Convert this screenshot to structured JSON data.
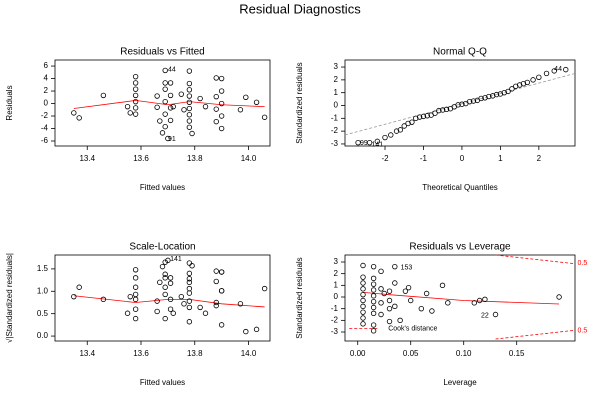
{
  "title": "Residual Diagnostics",
  "chart_data": [
    {
      "type": "scatter",
      "title": "Residuals vs Fitted",
      "xlabel": "Fitted values",
      "ylabel": "Residuals",
      "xlim": [
        13.28,
        14.08
      ],
      "ylim": [
        -6.8,
        6.97
      ],
      "xticks": [
        13.4,
        13.6,
        13.8,
        {
          "value": 14.0,
          "label": "14.0"
        }
      ],
      "yticks": [
        -6,
        -4,
        -2,
        0,
        2,
        4,
        6
      ],
      "color": "#000000",
      "x": [
        13.35,
        13.37,
        13.46,
        13.55,
        13.56,
        13.58,
        13.58,
        13.58,
        13.58,
        13.58,
        13.58,
        13.58,
        13.66,
        13.66,
        13.67,
        13.68,
        13.69,
        13.69,
        13.69,
        13.69,
        13.69,
        13.69,
        13.7,
        13.71,
        13.71,
        13.71,
        13.71,
        13.72,
        13.75,
        13.76,
        13.78,
        13.78,
        13.78,
        13.78,
        13.78,
        13.78,
        13.78,
        13.78,
        13.78,
        13.79,
        13.82,
        13.84,
        13.88,
        13.88,
        13.88,
        13.88,
        13.9,
        13.9,
        13.9,
        13.9,
        13.9,
        13.97,
        13.99,
        14.03,
        14.06
      ],
      "values": [
        -1.5,
        -2.3,
        1.3,
        -0.5,
        -1.5,
        4.3,
        2.3,
        1.3,
        0.3,
        -0.7,
        -1.7,
        3.3,
        1.2,
        -0.6,
        -2.8,
        -4.7,
        5.3,
        3.3,
        2.3,
        0.3,
        -1.7,
        -3.7,
        -5.6,
        3.3,
        1.3,
        -0.7,
        -2.7,
        -0.5,
        1.5,
        -1.0,
        5.2,
        3.2,
        2.2,
        1.2,
        0.2,
        -0.8,
        -1.8,
        -2.8,
        -3.8,
        -4.8,
        0.8,
        -0.5,
        4.1,
        1.1,
        -0.9,
        -2.9,
        4.0,
        2.0,
        0.0,
        -2.0,
        -4.0,
        -1.0,
        1.0,
        0.2,
        -2.2
      ],
      "lines": [
        {
          "color": "#ff0000",
          "dash": false,
          "x": [
            13.35,
            13.58,
            13.7,
            13.78,
            13.9,
            14.06
          ],
          "values": [
            -0.8,
            0.5,
            -0.2,
            0.3,
            -0.2,
            -0.5
          ]
        }
      ],
      "annotations": [
        {
          "text": "44",
          "x": 13.715,
          "y": 5.4
        },
        {
          "text": "91",
          "x": 13.715,
          "y": -5.7
        }
      ]
    },
    {
      "type": "scatter",
      "title": "Normal Q-Q",
      "xlabel": "Theoretical Quantiles",
      "ylabel": "Standardized residuals",
      "xlim": [
        -3.04,
        2.94
      ],
      "ylim": [
        -3.16,
        3.55
      ],
      "xticks": [
        -2,
        -1,
        0,
        1,
        2
      ],
      "yticks": [
        -3,
        -2,
        -1,
        0,
        1,
        2,
        3
      ],
      "color": "#000000",
      "x": [
        -2.7,
        -2.4,
        -2.2,
        -2.0,
        -1.85,
        -1.7,
        -1.6,
        -1.5,
        -1.4,
        -1.3,
        -1.2,
        -1.1,
        -1.0,
        -0.9,
        -0.8,
        -0.7,
        -0.6,
        -0.5,
        -0.4,
        -0.3,
        -0.2,
        -0.1,
        0.0,
        0.1,
        0.2,
        0.3,
        0.4,
        0.5,
        0.6,
        0.7,
        0.8,
        0.9,
        1.0,
        1.1,
        1.2,
        1.3,
        1.4,
        1.5,
        1.6,
        1.7,
        1.85,
        2.0,
        2.2,
        2.4,
        2.7
      ],
      "values": [
        -2.9,
        -2.9,
        -2.8,
        -2.5,
        -2.3,
        -2.0,
        -1.9,
        -1.6,
        -1.4,
        -1.3,
        -1.0,
        -0.9,
        -0.85,
        -0.8,
        -0.75,
        -0.6,
        -0.4,
        -0.35,
        -0.3,
        -0.25,
        -0.1,
        0.05,
        0.1,
        0.15,
        0.3,
        0.35,
        0.4,
        0.55,
        0.6,
        0.7,
        0.75,
        0.85,
        0.9,
        1.0,
        1.1,
        1.3,
        1.5,
        1.6,
        1.7,
        1.8,
        2.0,
        2.2,
        2.5,
        2.7,
        2.8
      ],
      "lines": [
        {
          "color": "#999999",
          "dash": true,
          "x": [
            -3.04,
            2.94
          ],
          "values": [
            -2.3,
            2.5
          ]
        }
      ],
      "annotations": [
        {
          "text": "99",
          "x": -2.55,
          "y": -2.95
        },
        {
          "text": "141",
          "x": -2.2,
          "y": -3.05
        },
        {
          "text": "44",
          "x": 2.5,
          "y": 2.85
        }
      ]
    },
    {
      "type": "scatter",
      "title": "Scale-Location",
      "xlabel": "Fitted values",
      "ylabel": "√|Standardized residuals|",
      "xlim": [
        13.28,
        14.08
      ],
      "ylim": [
        -0.11,
        1.81
      ],
      "xticks": [
        13.4,
        13.6,
        13.8,
        {
          "value": 14.0,
          "label": "14.0"
        }
      ],
      "yticks": [
        {
          "value": 0,
          "label": "0.0"
        },
        0.5,
        {
          "value": 1,
          "label": "1.0"
        },
        1.5
      ],
      "color": "#000000",
      "x": [
        13.35,
        13.37,
        13.46,
        13.55,
        13.56,
        13.58,
        13.58,
        13.58,
        13.58,
        13.58,
        13.58,
        13.58,
        13.66,
        13.66,
        13.67,
        13.68,
        13.69,
        13.69,
        13.69,
        13.69,
        13.69,
        13.69,
        13.7,
        13.71,
        13.71,
        13.71,
        13.71,
        13.72,
        13.75,
        13.76,
        13.78,
        13.78,
        13.78,
        13.78,
        13.78,
        13.78,
        13.78,
        13.78,
        13.78,
        13.79,
        13.82,
        13.84,
        13.88,
        13.88,
        13.88,
        13.88,
        13.9,
        13.9,
        13.9,
        13.9,
        13.9,
        13.97,
        13.99,
        14.03,
        14.06
      ],
      "values": [
        0.88,
        1.09,
        0.82,
        0.51,
        0.88,
        1.48,
        1.09,
        0.82,
        0.39,
        0.6,
        0.93,
        1.3,
        0.78,
        0.55,
        1.2,
        1.55,
        1.65,
        1.3,
        1.09,
        0.39,
        0.93,
        1.38,
        1.69,
        1.3,
        0.82,
        0.6,
        1.18,
        0.51,
        0.88,
        0.72,
        1.63,
        1.28,
        1.06,
        0.78,
        0.32,
        0.64,
        0.96,
        1.2,
        1.4,
        1.57,
        0.64,
        0.51,
        1.45,
        0.75,
        0.68,
        1.22,
        1.43,
        1.01,
        0.25,
        1.01,
        1.43,
        0.72,
        0.1,
        0.15,
        1.06
      ],
      "lines": [
        {
          "color": "#ff0000",
          "dash": false,
          "x": [
            13.35,
            13.58,
            13.7,
            13.78,
            13.9,
            14.06
          ],
          "values": [
            0.9,
            0.75,
            0.82,
            0.82,
            0.72,
            0.65
          ]
        }
      ],
      "annotations": [
        {
          "text": "141",
          "x": 13.73,
          "y": 1.72
        }
      ]
    },
    {
      "type": "scatter",
      "title": "Residuals vs Leverage",
      "xlabel": "Leverage",
      "ylabel": "Standardized residuals",
      "xlim": [
        -0.012,
        0.205
      ],
      "ylim": [
        -3.77,
        3.6
      ],
      "xticks": [
        {
          "value": 0,
          "label": "0.00"
        },
        0.05,
        {
          "value": 0.1,
          "label": "0.10"
        },
        0.15
      ],
      "yticks": [
        -3,
        -2,
        -1,
        0,
        1,
        2,
        3
      ],
      "color": "#000000",
      "x": [
        0.005,
        0.005,
        0.005,
        0.005,
        0.005,
        0.005,
        0.005,
        0.005,
        0.005,
        0.005,
        0.015,
        0.015,
        0.015,
        0.015,
        0.015,
        0.015,
        0.015,
        0.015,
        0.015,
        0.015,
        0.022,
        0.022,
        0.022,
        0.022,
        0.025,
        0.03,
        0.03,
        0.03,
        0.03,
        0.035,
        0.035,
        0.035,
        0.04,
        0.045,
        0.048,
        0.05,
        0.06,
        0.065,
        0.07,
        0.08,
        0.085,
        0.11,
        0.115,
        0.12,
        0.13,
        0.19
      ],
      "values": [
        2.7,
        1.7,
        1.2,
        0.7,
        0.2,
        -0.3,
        -0.8,
        -1.3,
        -1.8,
        -2.3,
        2.6,
        1.6,
        1.1,
        0.6,
        0.1,
        -0.4,
        -0.9,
        -1.4,
        -2.4,
        -2.9,
        2.2,
        0.7,
        -0.5,
        -1.5,
        0.3,
        0.5,
        -0.3,
        -1.0,
        -2.1,
        2.6,
        1.2,
        -0.8,
        -2.0,
        0.5,
        0.8,
        -0.3,
        -1.0,
        0.3,
        -1.2,
        1.0,
        -0.5,
        -0.5,
        -0.3,
        -0.2,
        -1.5,
        0.0
      ],
      "lines": [
        {
          "color": "#ff0000",
          "dash": false,
          "x": [
            0.005,
            0.03,
            0.1,
            0.19
          ],
          "values": [
            0.4,
            0.2,
            -0.3,
            -0.6
          ]
        },
        {
          "color": "#ff0000",
          "dash": true,
          "x": [
            0.13,
            0.16,
            0.205
          ],
          "values": [
            3.6,
            3.3,
            2.85
          ]
        },
        {
          "color": "#ff0000",
          "dash": true,
          "x": [
            0.13,
            0.16,
            0.205
          ],
          "values": [
            -3.6,
            -3.3,
            -2.85
          ]
        },
        {
          "color": "#ff0000",
          "dash": true,
          "x": [
            -0.008,
            0.02
          ],
          "values": [
            -2.7,
            -2.7
          ]
        }
      ],
      "annotations": [
        {
          "text": "153",
          "x": 0.046,
          "y": 2.5
        },
        {
          "text": "22",
          "x": 0.12,
          "y": -1.6
        },
        {
          "text": "Cook's distance",
          "x": 0.052,
          "y": -2.7
        },
        {
          "text": "0.5",
          "x": 0.212,
          "y": 2.9,
          "color": "#ff0000"
        },
        {
          "text": "0.5",
          "x": 0.212,
          "y": -2.9,
          "color": "#ff0000"
        }
      ]
    }
  ]
}
